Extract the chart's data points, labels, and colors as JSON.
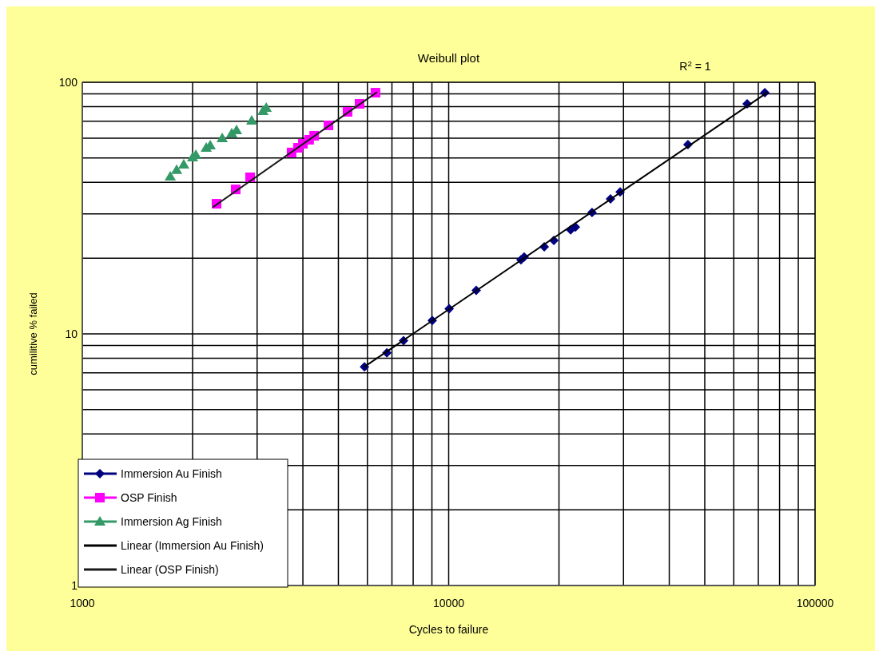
{
  "chart_data": {
    "type": "line",
    "title": "Weibull plot",
    "xlabel": "Cycles to failure",
    "ylabel": "cumilitive % failed",
    "log": "xy",
    "xlim": [
      1000,
      100000
    ],
    "ylim": [
      1,
      100
    ],
    "xticks": [
      1000,
      {
        "value": 2000,
        "label": null
      },
      {
        "value": 3000,
        "label": null
      },
      {
        "value": 4000,
        "label": null
      },
      {
        "value": 5000,
        "label": null
      },
      {
        "value": 6000,
        "label": null
      },
      {
        "value": 7000,
        "label": null
      },
      {
        "value": 8000,
        "label": null
      },
      {
        "value": 9000,
        "label": null
      },
      10000,
      {
        "value": 20000,
        "label": null
      },
      {
        "value": 30000,
        "label": null
      },
      {
        "value": 40000,
        "label": null
      },
      {
        "value": 50000,
        "label": null
      },
      {
        "value": 60000,
        "label": null
      },
      {
        "value": 70000,
        "label": null
      },
      {
        "value": 80000,
        "label": null
      },
      {
        "value": 90000,
        "label": null
      },
      100000
    ],
    "yticks": [
      1,
      {
        "value": 2,
        "label": null
      },
      {
        "value": 3,
        "label": null
      },
      {
        "value": 4,
        "label": null
      },
      {
        "value": 5,
        "label": null
      },
      {
        "value": 6,
        "label": null
      },
      {
        "value": 7,
        "label": null
      },
      {
        "value": 8,
        "label": null
      },
      {
        "value": 9,
        "label": null
      },
      10,
      {
        "value": 20,
        "label": null
      },
      {
        "value": 30,
        "label": null
      },
      {
        "value": 40,
        "label": null
      },
      {
        "value": 50,
        "label": null
      },
      {
        "value": 60,
        "label": null
      },
      {
        "value": 70,
        "label": null
      },
      {
        "value": 80,
        "label": null
      },
      {
        "value": 90,
        "label": null
      },
      100
    ],
    "grid": true,
    "legend": "bottom left",
    "annotations": [
      "R$^{2}$ = 1"
    ],
    "series": [
      {
        "name": "Immersion Au Finish",
        "type": "scatter",
        "color": "#000080",
        "marker": "diamond",
        "x": [
          5890,
          6780,
          7530,
          9020,
          10030,
          11890,
          15750,
          16070,
          18230,
          19360,
          21520,
          22170,
          24620,
          27650,
          29370,
          44980,
          65260,
          72920
        ],
        "values": [
          7.4,
          8.4,
          9.4,
          11.3,
          12.6,
          14.9,
          19.7,
          20.2,
          22.2,
          23.5,
          25.9,
          26.6,
          30.4,
          34.4,
          36.7,
          56.5,
          82.1,
          90.9
        ]
      },
      {
        "name": "OSP Finish",
        "type": "scatter",
        "color": "#ff00ff",
        "marker": "square",
        "x": [
          2325,
          2622,
          2871,
          3726,
          3880,
          4000,
          4159,
          4294,
          4698,
          5297,
          5712,
          6313
        ],
        "values": [
          32.9,
          37.5,
          41.9,
          52.6,
          54.9,
          57.0,
          59.1,
          61.3,
          67.4,
          76.3,
          82.1,
          90.9
        ]
      },
      {
        "name": "Immersion Ag Finish",
        "type": "scatter",
        "color": "#339966",
        "marker": "triangle",
        "x": [
          1738,
          1809,
          1892,
          2000,
          2041,
          2179,
          2234,
          2409,
          2558,
          2636,
          2900,
          3112,
          3177
        ],
        "values": [
          42.2,
          44.8,
          47.1,
          50.3,
          51.4,
          54.9,
          56.1,
          60.0,
          62.6,
          64.5,
          70.4,
          76.9,
          79.1
        ]
      },
      {
        "name": "Linear (Immersion Au Finish)",
        "color": "#000000",
        "marker": "none",
        "x": [
          5890,
          74000
        ],
        "values": [
          7.4,
          91
        ]
      },
      {
        "name": "Linear (OSP Finish)",
        "color": "#1a1a1a",
        "marker": "none",
        "x": [
          2280,
          6350
        ],
        "values": [
          32,
          91
        ]
      }
    ]
  }
}
